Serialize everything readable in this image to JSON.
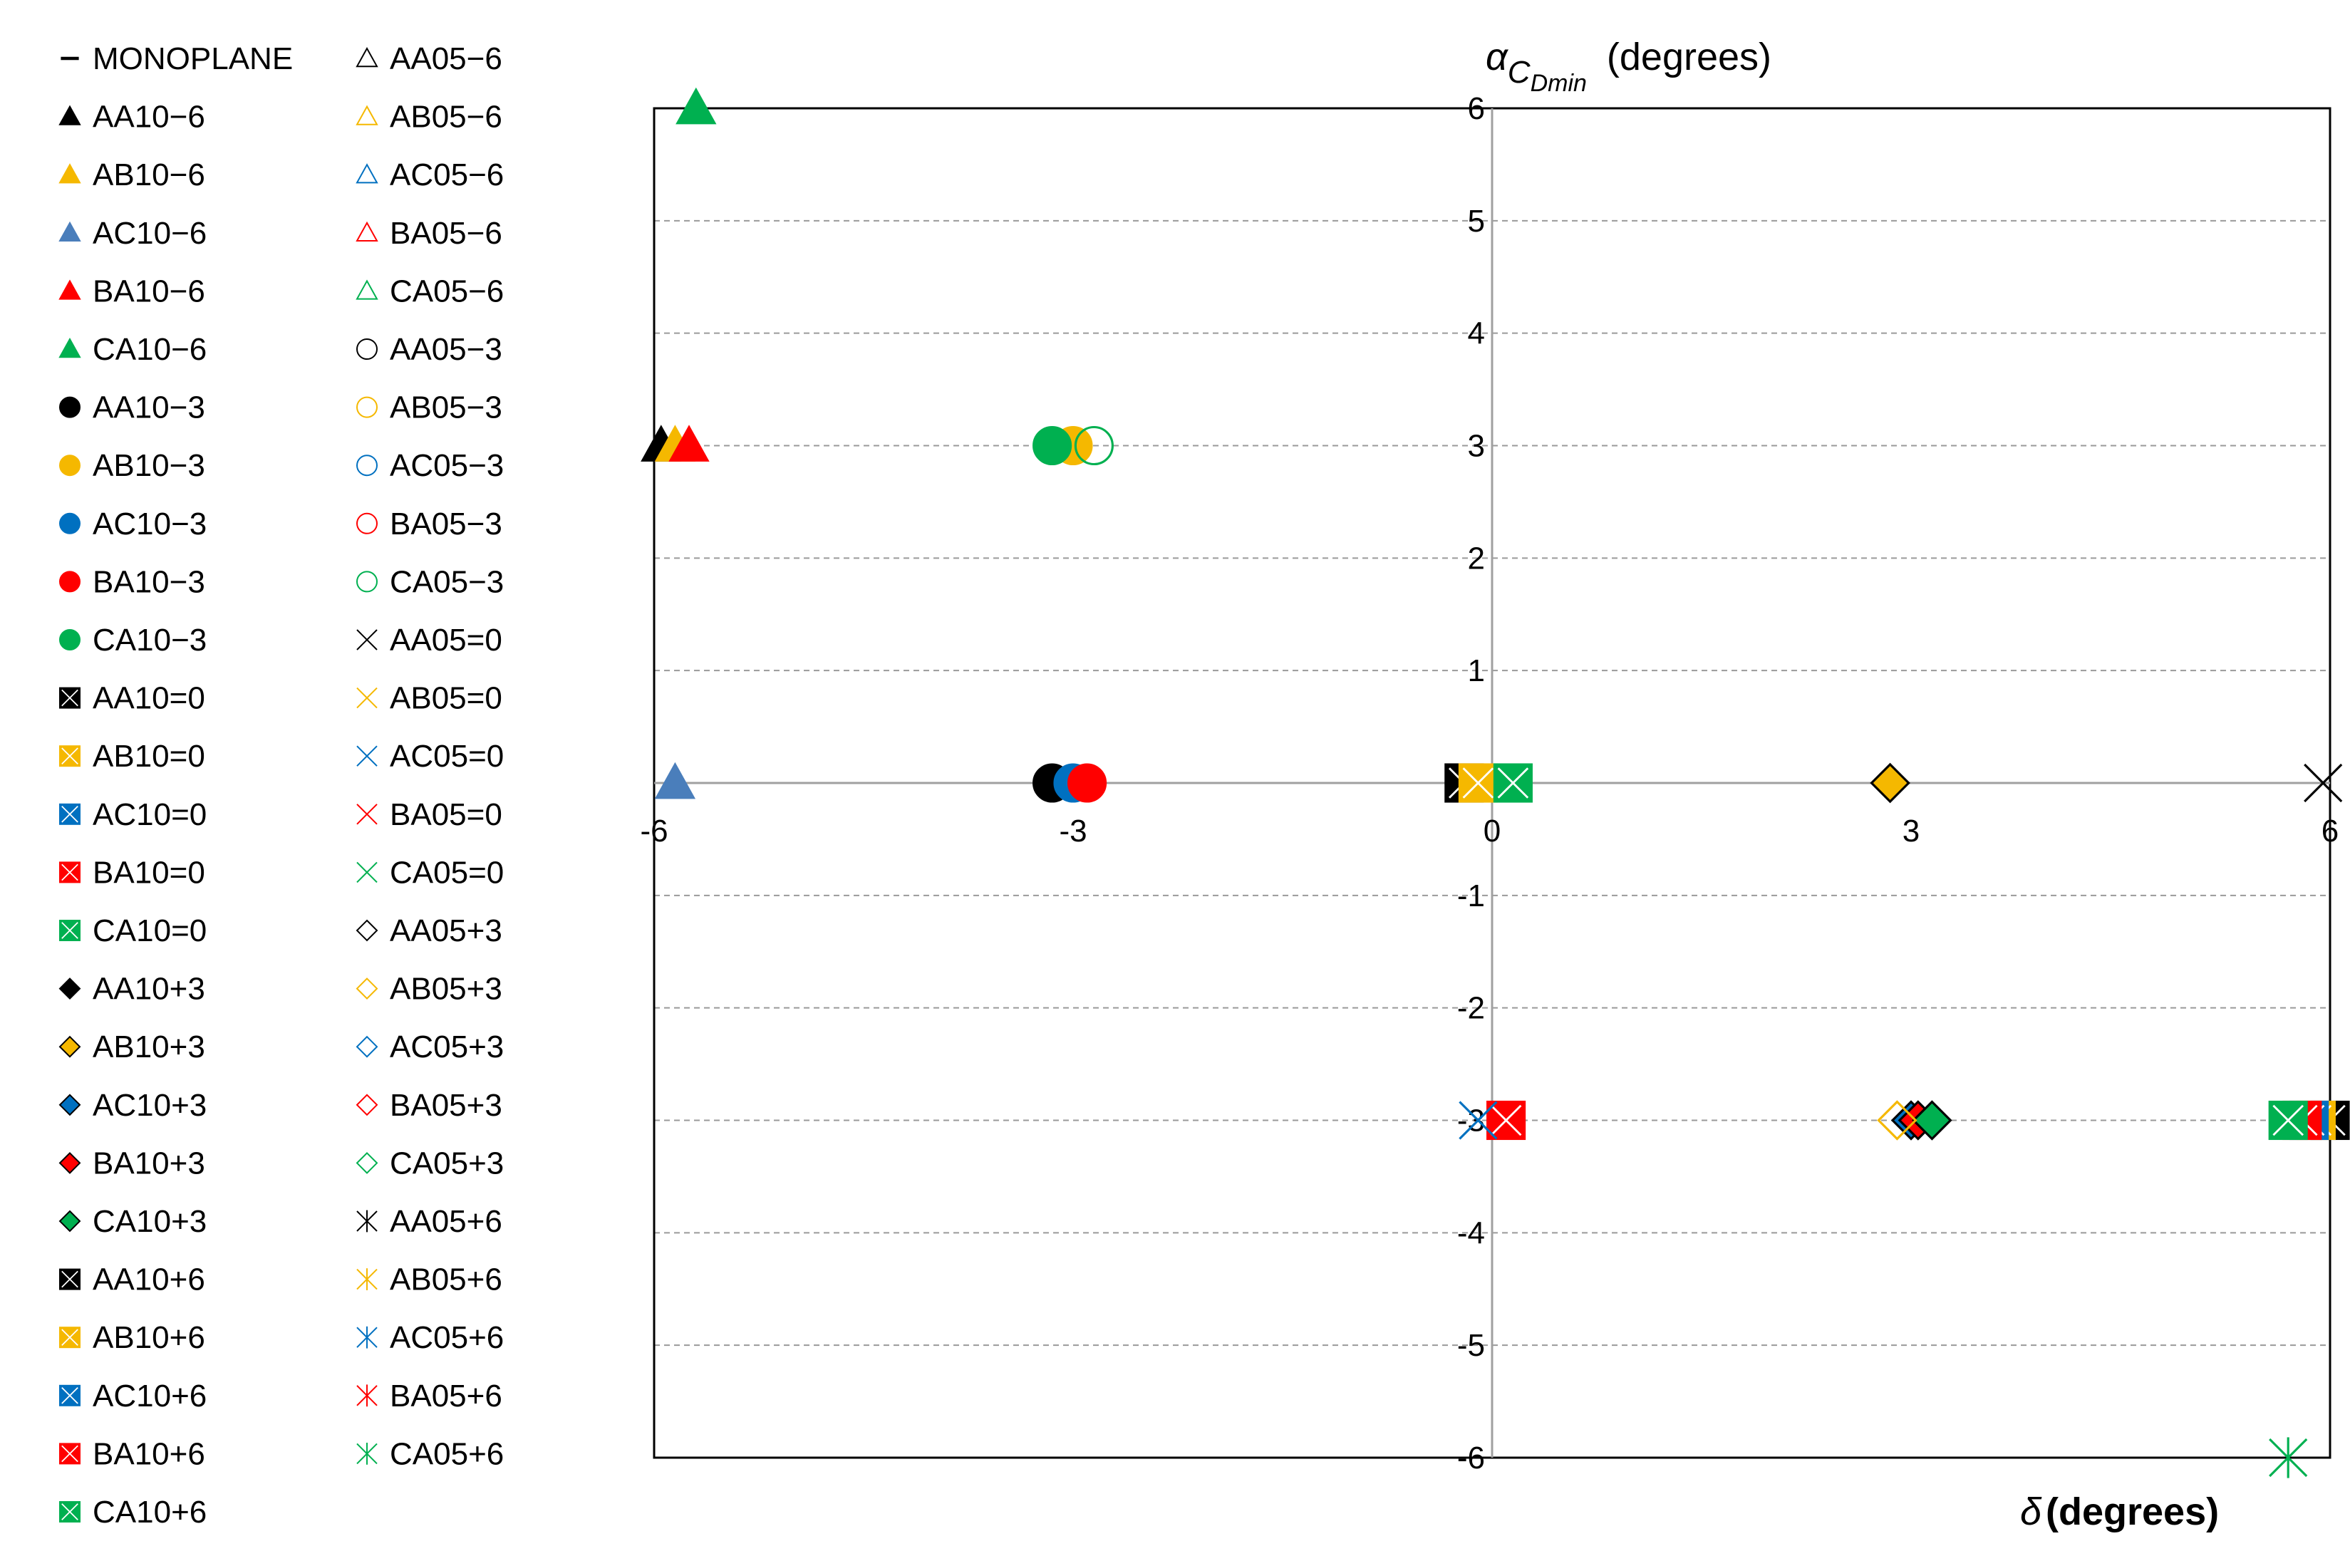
{
  "chart_data": {
    "type": "scatter",
    "title": "",
    "ylabel": {
      "symbol": "α",
      "subscript": "C",
      "subsubscript": "Dmin",
      "unit": "(degrees)"
    },
    "xlabel": {
      "symbol": "δ",
      "unit": "(degrees)"
    },
    "xlim": [
      -6,
      6
    ],
    "ylim": [
      -6,
      6
    ],
    "x_ticks": [
      -6,
      -3,
      0,
      3,
      6
    ],
    "x_tick_labels": [
      "-6",
      "-3",
      "0",
      "3",
      "6"
    ],
    "y_ticks": [
      -6,
      -5,
      -4,
      -3,
      -2,
      -1,
      0,
      1,
      2,
      3,
      4,
      5,
      6
    ],
    "y_tick_labels": [
      "-6",
      "-5",
      "-4",
      "-3",
      "-2",
      "-1",
      "0",
      "1",
      "2",
      "3",
      "4",
      "5",
      "6"
    ],
    "grid": "horizontal-dashed",
    "legend_position": "left",
    "colors": {
      "AA": "#000000",
      "AB": "#F5B800",
      "AC10": "#4A7EBB",
      "AC": "#0070C0",
      "BA": "#FF0000",
      "CA": "#00B050",
      "line": "#000000"
    },
    "series": [
      {
        "name": "MONOPLANE",
        "marker": "dash",
        "filled": true,
        "colorKey": "AA",
        "points": []
      },
      {
        "name": "AA10−6",
        "marker": "triangle",
        "filled": true,
        "colorKey": "AA",
        "points": [
          [
            -5.95,
            3
          ]
        ]
      },
      {
        "name": "AB10−6",
        "marker": "triangle",
        "filled": true,
        "colorKey": "AB",
        "points": [
          [
            -5.85,
            3
          ]
        ]
      },
      {
        "name": "AC10−6",
        "marker": "triangle",
        "filled": true,
        "colorKey": "AC10",
        "points": [
          [
            -5.85,
            0
          ]
        ]
      },
      {
        "name": "BA10−6",
        "marker": "triangle",
        "filled": true,
        "colorKey": "BA",
        "points": [
          [
            -5.75,
            3
          ]
        ]
      },
      {
        "name": "CA10−6",
        "marker": "triangle",
        "filled": true,
        "colorKey": "CA",
        "points": [
          [
            -5.7,
            6
          ]
        ]
      },
      {
        "name": "AA10−3",
        "marker": "circle",
        "filled": true,
        "colorKey": "AA",
        "points": [
          [
            -3.15,
            0
          ]
        ]
      },
      {
        "name": "AB10−3",
        "marker": "circle",
        "filled": true,
        "colorKey": "AB",
        "points": [
          [
            -3.0,
            3
          ]
        ]
      },
      {
        "name": "AC10−3",
        "marker": "circle",
        "filled": true,
        "colorKey": "AC",
        "points": [
          [
            -3.0,
            0
          ]
        ]
      },
      {
        "name": "BA10−3",
        "marker": "circle",
        "filled": true,
        "colorKey": "BA",
        "points": [
          [
            -2.9,
            0
          ]
        ]
      },
      {
        "name": "CA10−3",
        "marker": "circle",
        "filled": true,
        "colorKey": "CA",
        "points": [
          [
            -3.15,
            3
          ]
        ]
      },
      {
        "name": "AA10=0",
        "marker": "boxx",
        "filled": true,
        "colorKey": "AA",
        "points": [
          [
            -0.2,
            0
          ]
        ]
      },
      {
        "name": "AB10=0",
        "marker": "boxx",
        "filled": true,
        "colorKey": "AB",
        "points": [
          [
            -0.1,
            0
          ]
        ]
      },
      {
        "name": "AC10=0",
        "marker": "boxx",
        "filled": true,
        "colorKey": "AC",
        "points": []
      },
      {
        "name": "BA10=0",
        "marker": "boxx",
        "filled": true,
        "colorKey": "BA",
        "points": [
          [
            0.1,
            -3
          ]
        ]
      },
      {
        "name": "CA10=0",
        "marker": "boxx",
        "filled": true,
        "colorKey": "CA",
        "points": [
          [
            0.15,
            0
          ]
        ]
      },
      {
        "name": "AA10+3",
        "marker": "diamond",
        "filled": true,
        "colorKey": "AA",
        "points": [
          [
            2.85,
            0
          ]
        ]
      },
      {
        "name": "AB10+3",
        "marker": "diamond",
        "filled": true,
        "colorKey": "AB",
        "points": [
          [
            2.85,
            0
          ]
        ]
      },
      {
        "name": "AC10+3",
        "marker": "diamond",
        "filled": true,
        "colorKey": "AC",
        "points": [
          [
            3.0,
            -3
          ]
        ]
      },
      {
        "name": "BA10+3",
        "marker": "diamond",
        "filled": true,
        "colorKey": "BA",
        "points": [
          [
            3.05,
            -3
          ]
        ]
      },
      {
        "name": "CA10+3",
        "marker": "diamond",
        "filled": true,
        "colorKey": "CA",
        "points": [
          [
            3.15,
            -3
          ]
        ]
      },
      {
        "name": "AA10+6",
        "marker": "boxx",
        "filled": true,
        "colorKey": "AA",
        "points": [
          [
            6.0,
            -3
          ]
        ]
      },
      {
        "name": "AB10+6",
        "marker": "boxx",
        "filled": true,
        "colorKey": "AB",
        "points": [
          [
            5.9,
            -3
          ]
        ]
      },
      {
        "name": "AC10+6",
        "marker": "boxx",
        "filled": true,
        "colorKey": "AC",
        "points": [
          [
            5.85,
            -3
          ]
        ]
      },
      {
        "name": "BA10+6",
        "marker": "boxx",
        "filled": true,
        "colorKey": "BA",
        "points": [
          [
            5.8,
            -3
          ]
        ]
      },
      {
        "name": "CA10+6",
        "marker": "boxx",
        "filled": true,
        "colorKey": "CA",
        "points": [
          [
            5.7,
            -3
          ]
        ]
      },
      {
        "name": "AA05−6",
        "marker": "triangle",
        "filled": false,
        "colorKey": "AA",
        "points": []
      },
      {
        "name": "AB05−6",
        "marker": "triangle",
        "filled": false,
        "colorKey": "AB",
        "points": []
      },
      {
        "name": "AC05−6",
        "marker": "triangle",
        "filled": false,
        "colorKey": "AC",
        "points": []
      },
      {
        "name": "BA05−6",
        "marker": "triangle",
        "filled": false,
        "colorKey": "BA",
        "points": []
      },
      {
        "name": "CA05−6",
        "marker": "triangle",
        "filled": false,
        "colorKey": "CA",
        "points": []
      },
      {
        "name": "AA05−3",
        "marker": "circle",
        "filled": false,
        "colorKey": "AA",
        "points": []
      },
      {
        "name": "AB05−3",
        "marker": "circle",
        "filled": false,
        "colorKey": "AB",
        "points": []
      },
      {
        "name": "AC05−3",
        "marker": "circle",
        "filled": false,
        "colorKey": "AC",
        "points": []
      },
      {
        "name": "BA05−3",
        "marker": "circle",
        "filled": false,
        "colorKey": "BA",
        "points": []
      },
      {
        "name": "CA05−3",
        "marker": "circle",
        "filled": false,
        "colorKey": "CA",
        "points": [
          [
            -2.85,
            3
          ]
        ]
      },
      {
        "name": "AA05=0",
        "marker": "x",
        "filled": false,
        "colorKey": "AA",
        "points": [
          [
            5.95,
            0
          ]
        ]
      },
      {
        "name": "AB05=0",
        "marker": "x",
        "filled": false,
        "colorKey": "AB",
        "points": []
      },
      {
        "name": "AC05=0",
        "marker": "x",
        "filled": false,
        "colorKey": "AC",
        "points": [
          [
            -0.1,
            -3
          ]
        ]
      },
      {
        "name": "BA05=0",
        "marker": "x",
        "filled": false,
        "colorKey": "BA",
        "points": []
      },
      {
        "name": "CA05=0",
        "marker": "x",
        "filled": false,
        "colorKey": "CA",
        "points": []
      },
      {
        "name": "AA05+3",
        "marker": "diamond",
        "filled": false,
        "colorKey": "AA",
        "points": []
      },
      {
        "name": "AB05+3",
        "marker": "diamond",
        "filled": false,
        "colorKey": "AB",
        "points": [
          [
            2.9,
            -3
          ]
        ]
      },
      {
        "name": "AC05+3",
        "marker": "diamond",
        "filled": false,
        "colorKey": "AC",
        "points": []
      },
      {
        "name": "BA05+3",
        "marker": "diamond",
        "filled": false,
        "colorKey": "BA",
        "points": []
      },
      {
        "name": "CA05+3",
        "marker": "diamond",
        "filled": false,
        "colorKey": "CA",
        "points": []
      },
      {
        "name": "AA05+6",
        "marker": "star",
        "filled": false,
        "colorKey": "AA",
        "points": []
      },
      {
        "name": "AB05+6",
        "marker": "star",
        "filled": false,
        "colorKey": "AB",
        "points": []
      },
      {
        "name": "AC05+6",
        "marker": "star",
        "filled": false,
        "colorKey": "AC",
        "points": []
      },
      {
        "name": "BA05+6",
        "marker": "star",
        "filled": false,
        "colorKey": "BA",
        "points": []
      },
      {
        "name": "CA05+6",
        "marker": "star",
        "filled": false,
        "colorKey": "CA",
        "points": [
          [
            5.7,
            -6
          ]
        ]
      }
    ]
  }
}
